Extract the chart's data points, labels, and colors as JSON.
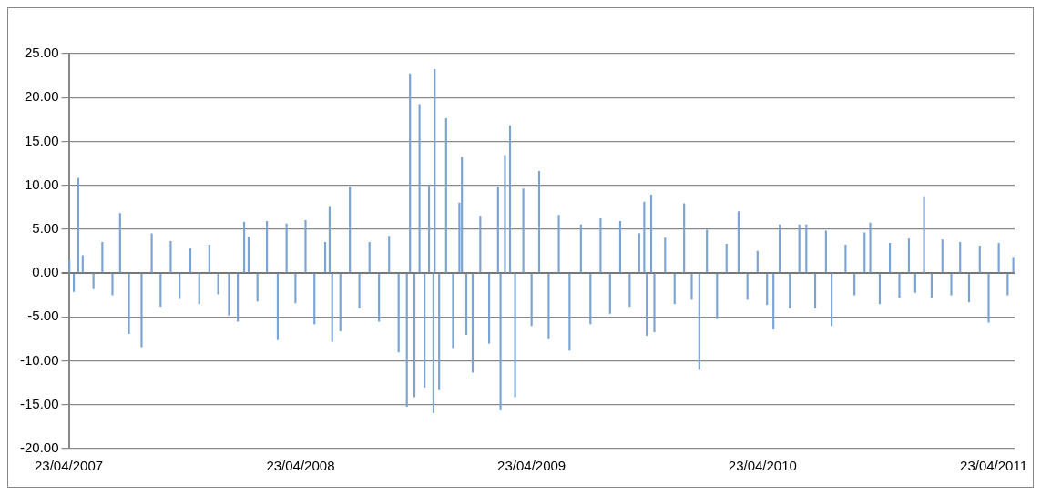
{
  "chart_data": {
    "type": "bar",
    "color": "#7ba3d3",
    "x": [
      "2007-04-24",
      "2007-05-01",
      "2007-05-08",
      "2007-05-15",
      "2007-06-01",
      "2007-06-15",
      "2007-07-01",
      "2007-07-13",
      "2007-07-27",
      "2007-08-16",
      "2007-09-01",
      "2007-09-15",
      "2007-10-01",
      "2007-10-15",
      "2007-11-01",
      "2007-11-15",
      "2007-12-01",
      "2007-12-15",
      "2008-01-01",
      "2008-01-15",
      "2008-01-25",
      "2008-02-01",
      "2008-02-15",
      "2008-03-01",
      "2008-03-18",
      "2008-04-01",
      "2008-04-15",
      "2008-05-01",
      "2008-05-15",
      "2008-06-01",
      "2008-06-08",
      "2008-06-12",
      "2008-06-25",
      "2008-07-10",
      "2008-07-25",
      "2008-08-10",
      "2008-08-25",
      "2008-09-10",
      "2008-09-25",
      "2008-10-08",
      "2008-10-13",
      "2008-10-20",
      "2008-10-28",
      "2008-11-05",
      "2008-11-12",
      "2008-11-19",
      "2008-11-21",
      "2008-11-28",
      "2008-12-09",
      "2008-12-20",
      "2008-12-30",
      "2009-01-03",
      "2009-01-10",
      "2009-01-20",
      "2009-02-01",
      "2009-02-15",
      "2009-03-01",
      "2009-03-05",
      "2009-03-12",
      "2009-03-20",
      "2009-03-28",
      "2009-04-10",
      "2009-04-23",
      "2009-05-05",
      "2009-05-20",
      "2009-06-05",
      "2009-06-22",
      "2009-07-10",
      "2009-07-25",
      "2009-08-10",
      "2009-08-25",
      "2009-09-10",
      "2009-09-25",
      "2009-10-10",
      "2009-10-18",
      "2009-10-22",
      "2009-10-29",
      "2009-11-03",
      "2009-11-20",
      "2009-12-05",
      "2009-12-20",
      "2010-01-01",
      "2010-01-13",
      "2010-01-25",
      "2010-02-10",
      "2010-02-25",
      "2010-03-16",
      "2010-03-30",
      "2010-04-15",
      "2010-04-30",
      "2010-05-10",
      "2010-05-20",
      "2010-06-05",
      "2010-06-20",
      "2010-07-01",
      "2010-07-15",
      "2010-08-01",
      "2010-08-10",
      "2010-09-01",
      "2010-09-15",
      "2010-10-01",
      "2010-10-10",
      "2010-10-25",
      "2010-11-10",
      "2010-11-25",
      "2010-12-10",
      "2010-12-20",
      "2011-01-03",
      "2011-01-15",
      "2011-02-01",
      "2011-02-15",
      "2011-03-01",
      "2011-03-15",
      "2011-04-01",
      "2011-04-15",
      "2011-05-01",
      "2011-05-15",
      "2011-05-24"
    ],
    "values": [
      1.5,
      -2.1,
      10.8,
      2.0,
      -1.8,
      3.5,
      -2.5,
      6.8,
      -6.9,
      -8.4,
      4.5,
      -3.8,
      3.6,
      -2.9,
      2.8,
      -3.5,
      3.2,
      -2.4,
      -4.8,
      -5.5,
      5.8,
      4.1,
      -3.2,
      5.9,
      -7.6,
      5.6,
      -3.4,
      6.0,
      -5.8,
      3.5,
      7.6,
      -7.8,
      -6.6,
      9.8,
      -4.0,
      3.5,
      -5.5,
      4.2,
      -9.0,
      -15.2,
      22.7,
      -14.1,
      19.2,
      -13.0,
      10.0,
      -15.9,
      23.2,
      -13.3,
      17.6,
      -8.5,
      8.0,
      13.2,
      -7.0,
      -11.3,
      6.5,
      -8.0,
      9.8,
      -15.6,
      13.4,
      16.8,
      -14.1,
      9.6,
      -6.0,
      11.6,
      -7.5,
      6.6,
      -8.8,
      5.5,
      -5.8,
      6.2,
      -4.6,
      5.9,
      -3.8,
      4.5,
      8.1,
      -7.1,
      8.9,
      -6.7,
      4.0,
      -3.5,
      7.9,
      -3.0,
      -11.0,
      4.9,
      -5.2,
      3.3,
      7.0,
      -3.0,
      2.5,
      -3.6,
      -6.4,
      5.5,
      -4.0,
      5.5,
      5.5,
      -4.0,
      4.8,
      -6.0,
      3.2,
      -2.5,
      4.6,
      5.7,
      -3.5,
      3.4,
      -2.8,
      3.9,
      -2.2,
      8.7,
      -2.8,
      3.8,
      -2.5,
      3.5,
      -3.3,
      3.1,
      -5.6,
      3.4,
      -2.5,
      1.8
    ],
    "xlim": [
      "2007-04-23",
      "2011-05-26"
    ],
    "xticks": [
      {
        "value": "2007-04-23",
        "label": "23/04/2007"
      },
      {
        "value": "2008-04-23",
        "label": "23/04/2008"
      },
      {
        "value": "2009-04-23",
        "label": "23/04/2009"
      },
      {
        "value": "2010-04-23",
        "label": "23/04/2010"
      },
      {
        "value": "2011-04-23",
        "label": "23/04/2011"
      }
    ],
    "ylim": [
      -20,
      25
    ],
    "yticks": [
      {
        "value": -20,
        "label": "-20.00"
      },
      {
        "value": -15,
        "label": "-15.00"
      },
      {
        "value": -10,
        "label": "-10.00"
      },
      {
        "value": -5,
        "label": "-5.00"
      },
      {
        "value": 0,
        "label": "0.00"
      },
      {
        "value": 5,
        "label": "5.00"
      },
      {
        "value": 10,
        "label": "10.00"
      },
      {
        "value": 15,
        "label": "15.00"
      },
      {
        "value": 20,
        "label": "20.00"
      },
      {
        "value": 25,
        "label": "25.00"
      }
    ],
    "grid": "y"
  }
}
